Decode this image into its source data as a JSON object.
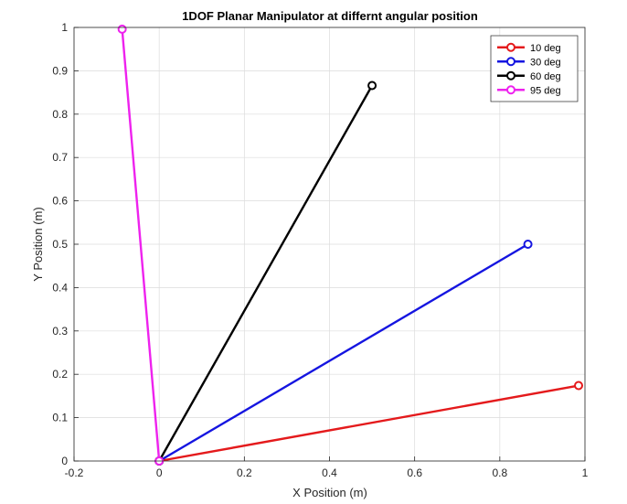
{
  "chart_data": {
    "type": "line",
    "title": "1DOF Planar Manipulator at differnt angular position",
    "xlabel": "X Position (m)",
    "ylabel": "Y Position (m)",
    "xlim": [
      -0.2,
      1
    ],
    "ylim": [
      0,
      1
    ],
    "xticks": [
      -0.2,
      0,
      0.2,
      0.4,
      0.6,
      0.8,
      1
    ],
    "xtick_labels": [
      "-0.2",
      "0",
      "0.2",
      "0.4",
      "0.6",
      "0.8",
      "1"
    ],
    "yticks": [
      0,
      0.1,
      0.2,
      0.3,
      0.4,
      0.5,
      0.6,
      0.7,
      0.8,
      0.9,
      1
    ],
    "ytick_labels": [
      "0",
      "0.1",
      "0.2",
      "0.3",
      "0.4",
      "0.5",
      "0.6",
      "0.7",
      "0.8",
      "0.9",
      "1"
    ],
    "grid": true,
    "legend_position": "top-right",
    "series": [
      {
        "name": "10 deg",
        "color": "#e41a1c",
        "x": [
          0,
          0.985
        ],
        "y": [
          0,
          0.174
        ]
      },
      {
        "name": "30 deg",
        "color": "#1515e0",
        "x": [
          0,
          0.866
        ],
        "y": [
          0,
          0.5
        ]
      },
      {
        "name": "60 deg",
        "color": "#000000",
        "x": [
          0,
          0.5
        ],
        "y": [
          0,
          0.866
        ]
      },
      {
        "name": "95 deg",
        "color": "#ee22ee",
        "x": [
          0,
          -0.087
        ],
        "y": [
          0,
          0.996
        ]
      }
    ]
  }
}
